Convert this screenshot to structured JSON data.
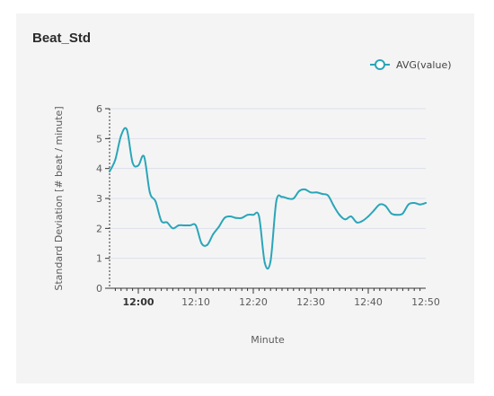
{
  "panel": {
    "title": "Beat_Std"
  },
  "colors": {
    "line": "#2aa6b8",
    "grid": "#dde0ea",
    "axis": "#333333",
    "panel_bg": "#f4f4f5"
  },
  "chart_data": {
    "type": "line",
    "title": "",
    "xlabel": "Minute",
    "ylabel": "Standard Deviation [# beat / minute]",
    "x_unit": "time (hh:mm)",
    "xlim": [
      "11:55",
      "12:50"
    ],
    "ylim": [
      0,
      6
    ],
    "x_ticks": [
      {
        "label": "12:00",
        "time": "12:00",
        "bold": true
      },
      {
        "label": "12:10",
        "time": "12:10",
        "bold": false
      },
      {
        "label": "12:20",
        "time": "12:20",
        "bold": false
      },
      {
        "label": "12:30",
        "time": "12:30",
        "bold": false
      },
      {
        "label": "12:40",
        "time": "12:40",
        "bold": false
      },
      {
        "label": "12:50",
        "time": "12:50",
        "bold": false
      }
    ],
    "y_ticks": [
      0,
      1,
      2,
      3,
      4,
      5,
      6
    ],
    "grid": "horizontal",
    "legend_position": "top-right",
    "series": [
      {
        "name": "AVG(value)",
        "x": [
          "11:55",
          "11:56",
          "11:57",
          "11:58",
          "11:59",
          "12:00",
          "12:01",
          "12:02",
          "12:03",
          "12:04",
          "12:05",
          "12:06",
          "12:07",
          "12:08",
          "12:09",
          "12:10",
          "12:11",
          "12:12",
          "12:13",
          "12:14",
          "12:15",
          "12:16",
          "12:17",
          "12:18",
          "12:19",
          "12:20",
          "12:21",
          "12:22",
          "12:23",
          "12:24",
          "12:25",
          "12:26",
          "12:27",
          "12:28",
          "12:29",
          "12:30",
          "12:31",
          "12:32",
          "12:33",
          "12:34",
          "12:35",
          "12:36",
          "12:37",
          "12:38",
          "12:39",
          "12:40",
          "12:41",
          "12:42",
          "12:43",
          "12:44",
          "12:45",
          "12:46",
          "12:47",
          "12:48",
          "12:49",
          "12:50"
        ],
        "values": [
          3.9,
          4.3,
          5.1,
          5.3,
          4.2,
          4.1,
          4.4,
          3.2,
          2.9,
          2.25,
          2.2,
          2.0,
          2.1,
          2.1,
          2.1,
          2.1,
          1.5,
          1.45,
          1.8,
          2.05,
          2.35,
          2.4,
          2.35,
          2.35,
          2.45,
          2.45,
          2.4,
          0.85,
          0.9,
          2.9,
          3.05,
          3.0,
          3.0,
          3.25,
          3.3,
          3.2,
          3.2,
          3.15,
          3.1,
          2.75,
          2.45,
          2.3,
          2.4,
          2.2,
          2.25,
          2.4,
          2.6,
          2.8,
          2.75,
          2.5,
          2.45,
          2.5,
          2.8,
          2.85,
          2.8,
          2.85
        ]
      }
    ]
  }
}
